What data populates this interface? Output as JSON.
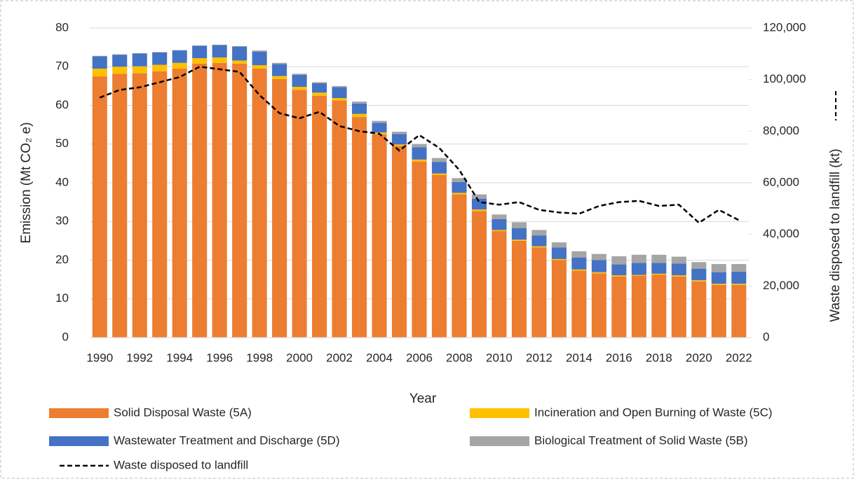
{
  "chart_data": {
    "type": "bar",
    "stacked": true,
    "x_title": "Year",
    "y_title": "Emission (Mt CO₂ e)",
    "y2_title": "Waste disposed to landfill (kt)",
    "categories": [
      "1990",
      null,
      "1992",
      null,
      "1994",
      null,
      "1996",
      null,
      "1998",
      null,
      "2000",
      null,
      "2002",
      null,
      "2004",
      null,
      "2006",
      null,
      "2008",
      null,
      "2010",
      null,
      "2012",
      null,
      "2014",
      null,
      "2016",
      null,
      "2018",
      null,
      "2020",
      null,
      "2022"
    ],
    "series": [
      {
        "name": "Solid Disposal Waste (5A)",
        "type": "bar",
        "color": "#ed7d31",
        "values": [
          67.5,
          68.2,
          68.3,
          68.8,
          69.5,
          70.8,
          71.0,
          70.8,
          69.5,
          66.8,
          64.0,
          62.5,
          61.3,
          57.0,
          52.5,
          49.5,
          45.5,
          42.0,
          37.0,
          32.7,
          27.5,
          25.0,
          23.3,
          20.0,
          17.3,
          16.6,
          15.8,
          16.0,
          16.2,
          15.8,
          14.5,
          13.6,
          13.6
        ]
      },
      {
        "name": "Incineration and Open Burning of Waste (5C)",
        "type": "bar",
        "color": "#ffc000",
        "values": [
          2.0,
          1.8,
          1.8,
          1.7,
          1.5,
          1.4,
          1.4,
          0.8,
          0.9,
          0.8,
          0.8,
          0.8,
          0.6,
          0.8,
          0.5,
          0.4,
          0.5,
          0.4,
          0.4,
          0.4,
          0.3,
          0.3,
          0.3,
          0.3,
          0.3,
          0.3,
          0.3,
          0.2,
          0.3,
          0.3,
          0.3,
          0.3,
          0.3
        ]
      },
      {
        "name": "Wastewater Treatment and Discharge (5D)",
        "type": "bar",
        "color": "#4472c4",
        "values": [
          3.2,
          3.1,
          3.3,
          3.2,
          3.2,
          3.2,
          3.2,
          3.6,
          3.5,
          3.1,
          3.1,
          2.4,
          2.8,
          2.7,
          2.5,
          2.7,
          3.2,
          3.0,
          2.8,
          2.8,
          2.8,
          3.0,
          2.8,
          3.0,
          3.1,
          3.1,
          2.8,
          3.1,
          2.8,
          3.0,
          3.0,
          3.0,
          3.1
        ]
      },
      {
        "name": "Biological Treatment of Solid Waste (5B)",
        "type": "bar",
        "color": "#a5a5a5",
        "values": [
          0.1,
          0.1,
          0.1,
          0.1,
          0.1,
          0.1,
          0.1,
          0.1,
          0.3,
          0.3,
          0.3,
          0.3,
          0.3,
          0.5,
          0.5,
          0.6,
          0.8,
          1.0,
          1.0,
          1.1,
          1.2,
          1.5,
          1.4,
          1.3,
          1.6,
          1.6,
          2.1,
          2.1,
          2.1,
          1.8,
          1.7,
          2.1,
          2.0
        ]
      },
      {
        "name": "Waste disposed to landfill",
        "type": "line",
        "axis": "y2",
        "color": "#000000",
        "dashed": true,
        "values": [
          93000,
          96000,
          97000,
          99000,
          101000,
          105000,
          104000,
          103000,
          94000,
          87000,
          85000,
          87500,
          82000,
          80000,
          79000,
          72500,
          78500,
          73500,
          65000,
          52500,
          51500,
          52500,
          49500,
          48500,
          48000,
          51000,
          52500,
          53000,
          51000,
          51500,
          44500,
          49500,
          45500
        ]
      }
    ],
    "ylim": [
      0,
      80
    ],
    "yticks": [
      0,
      10,
      20,
      30,
      40,
      50,
      60,
      70,
      80
    ],
    "y2lim": [
      0,
      120000
    ],
    "y2ticks": [
      0,
      {
        "value": 20000,
        "label": "20,000"
      },
      {
        "value": 40000,
        "label": "40,000"
      },
      {
        "value": 60000,
        "label": "60,000"
      },
      {
        "value": 80000,
        "label": "80,000"
      },
      {
        "value": 100000,
        "label": "100,000"
      },
      {
        "value": 120000,
        "label": "120,000"
      }
    ],
    "grid": true,
    "legend": "bottom"
  }
}
